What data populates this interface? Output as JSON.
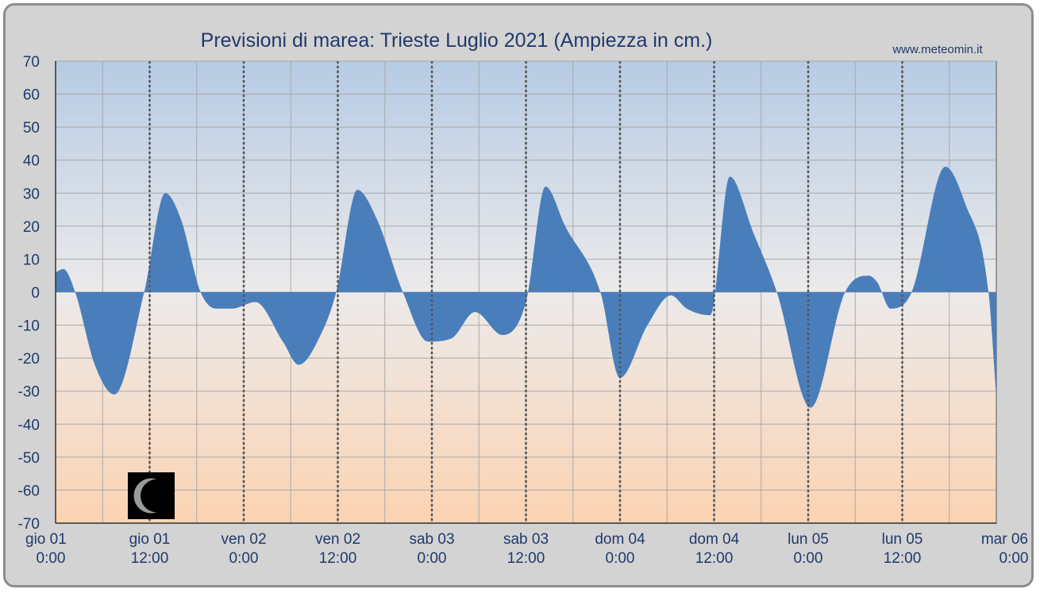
{
  "chart_data": {
    "type": "area",
    "title": "Previsioni di marea: Trieste Luglio 2021 (Ampiezza in cm.)",
    "source": "www.meteomin.it",
    "xlabel": "",
    "ylabel": "",
    "ylim": [
      -70,
      70
    ],
    "y_ticks": [
      70,
      60,
      50,
      40,
      30,
      20,
      10,
      0,
      -10,
      -20,
      -30,
      -40,
      -50,
      -60,
      -70
    ],
    "x_hours_range": [
      0,
      120
    ],
    "x_tick_labels": [
      {
        "hour": 0,
        "day": "gio   01",
        "time": "0:00"
      },
      {
        "hour": 12,
        "day": "gio   01",
        "time": "12:00"
      },
      {
        "hour": 24,
        "day": "ven   02",
        "time": "0:00"
      },
      {
        "hour": 36,
        "day": "ven   02",
        "time": "12:00"
      },
      {
        "hour": 48,
        "day": "sab   03",
        "time": "0:00"
      },
      {
        "hour": 60,
        "day": "sab   03",
        "time": "12:00"
      },
      {
        "hour": 72,
        "day": "dom   04",
        "time": "0:00"
      },
      {
        "hour": 84,
        "day": "dom   04",
        "time": "12:00"
      },
      {
        "hour": 96,
        "day": "lun   05",
        "time": "0:00"
      },
      {
        "hour": 108,
        "day": "lun   05",
        "time": "12:00"
      },
      {
        "hour": 120,
        "day": "mar   06",
        "time": "0:00"
      }
    ],
    "grid": true,
    "series": [
      {
        "color": "#4a7ebb",
        "x_hours": [
          0,
          1,
          2.5,
          5,
          7.5,
          11.3,
          14,
          16,
          18.5,
          20.5,
          22.5,
          25.5,
          29,
          31,
          34,
          35.8,
          38.5,
          41,
          44.3,
          47.5,
          50.5,
          53.5,
          57,
          60,
          62.5,
          65,
          69.5,
          72,
          75.5,
          78.5,
          80.5,
          83.5,
          86,
          89,
          92,
          96.3,
          100.7,
          103.7,
          104.8,
          106.5,
          109.2,
          113.5,
          116,
          119,
          120
        ],
        "values": [
          6,
          7,
          0,
          -22,
          -31,
          0,
          30,
          22,
          0,
          -5,
          -5,
          -3,
          -15,
          -22,
          -12,
          0,
          31,
          22,
          0,
          -15,
          -14,
          -6,
          -13,
          -3,
          32,
          20,
          0,
          -26,
          -10,
          -1,
          -5,
          -7,
          35,
          18,
          0,
          -35,
          0,
          5,
          3,
          -5,
          0,
          38,
          27,
          0,
          -32
        ]
      }
    ]
  },
  "moon_phase_icon": "waning-crescent-moon-icon"
}
